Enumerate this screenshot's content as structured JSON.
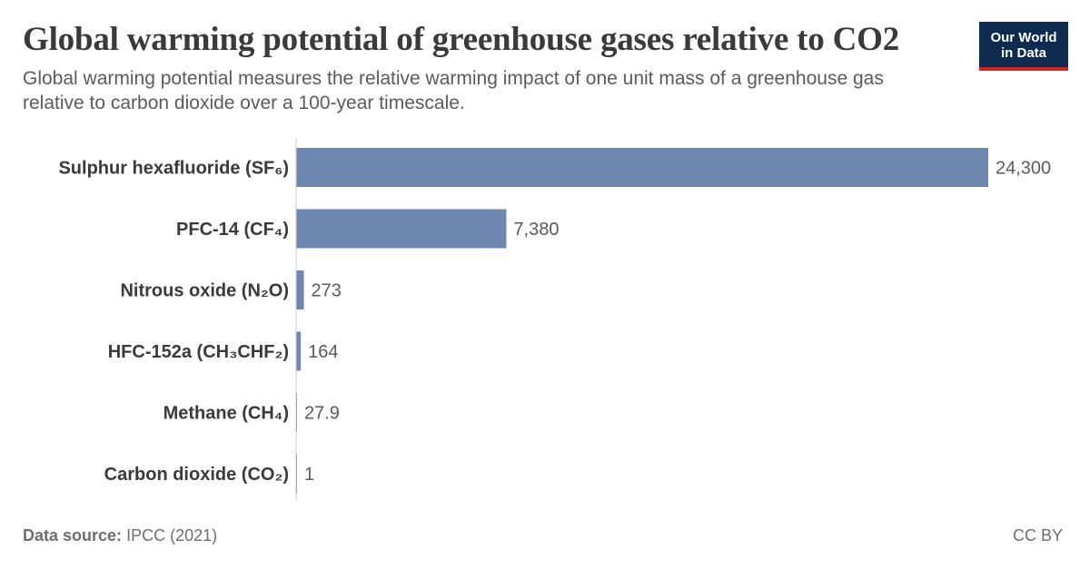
{
  "header": {
    "title": "Global warming potential of greenhouse gases relative to CO2",
    "subtitle": "Global warming potential measures the relative warming impact of one unit mass of a greenhouse gas relative to carbon dioxide over a 100-year timescale."
  },
  "logo": {
    "line1": "Our World",
    "line2": "in Data"
  },
  "footer": {
    "source_label": "Data source:",
    "source_value": "IPCC (2021)",
    "license": "CC BY"
  },
  "colors": {
    "bar": "#6f86b1",
    "axis": "#cccccc",
    "label": "#3a3a3a",
    "value": "#5b5b5b"
  },
  "chart_data": {
    "type": "bar",
    "orientation": "horizontal",
    "title": "Global warming potential of greenhouse gases relative to CO2",
    "xlabel": "",
    "ylabel": "",
    "xlim": [
      0,
      24300
    ],
    "grid": false,
    "categories": [
      "Sulphur hexafluoride (SF₆)",
      "PFC-14 (CF₄)",
      "Nitrous oxide (N₂O)",
      "HFC-152a (CH₃CHF₂)",
      "Methane (CH₄)",
      "Carbon dioxide (CO₂)"
    ],
    "values": [
      24300,
      7380,
      273,
      164,
      27.9,
      1
    ],
    "value_labels": [
      "24,300",
      "7,380",
      "273",
      "164",
      "27.9",
      "1"
    ]
  }
}
